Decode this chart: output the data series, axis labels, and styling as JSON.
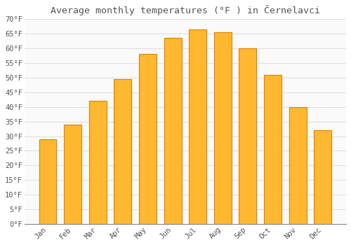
{
  "title": "Average monthly temperatures (°F ) in Černelavci",
  "months": [
    "Jan",
    "Feb",
    "Mar",
    "Apr",
    "May",
    "Jun",
    "Jul",
    "Aug",
    "Sep",
    "Oct",
    "Nov",
    "Dec"
  ],
  "values": [
    29,
    34,
    42,
    49.5,
    58,
    63.5,
    66.5,
    65.5,
    60,
    51,
    40,
    32
  ],
  "bar_color": "#FFA500",
  "bar_face_color": "#FFB830",
  "bar_edge_color": "#E08000",
  "background_color": "#FFFFFF",
  "plot_bg_color": "#FAFAFA",
  "grid_color": "#E0E0E0",
  "text_color": "#555555",
  "ylim": [
    0,
    70
  ],
  "ytick_step": 5,
  "title_fontsize": 9.5,
  "tick_fontsize": 7.5,
  "font_family": "monospace"
}
